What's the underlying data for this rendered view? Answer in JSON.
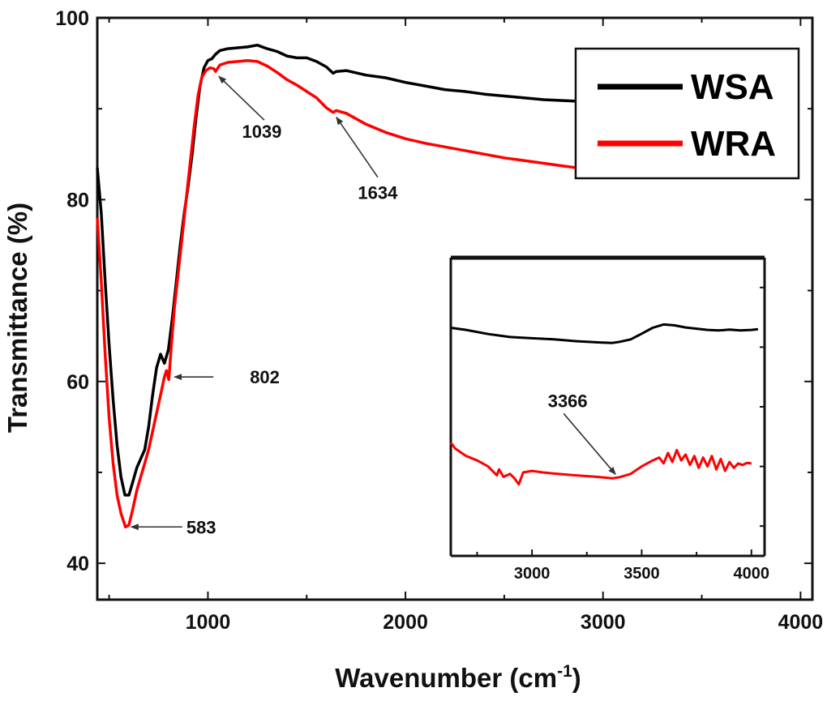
{
  "chart_data": [
    {
      "type": "line",
      "xlabel": "Wavenumber (cm",
      "xlabel_sup": "-1",
      "xlabel_end": ")",
      "ylabel": "Transmittance (%)",
      "xlim": [
        440,
        4060
      ],
      "ylim": [
        36,
        100
      ],
      "x_ticks": [
        1000,
        2000,
        3000,
        4000
      ],
      "y_ticks": [
        40,
        60,
        80,
        100
      ],
      "grid": false,
      "legend_position": "top-right",
      "series": [
        {
          "name": "WSA",
          "color": "#000000",
          "x": [
            440,
            460,
            480,
            500,
            520,
            540,
            560,
            580,
            600,
            620,
            640,
            660,
            680,
            700,
            720,
            740,
            760,
            780,
            800,
            820,
            840,
            860,
            880,
            900,
            920,
            940,
            960,
            980,
            1000,
            1020,
            1039,
            1060,
            1100,
            1150,
            1200,
            1250,
            1300,
            1350,
            1400,
            1450,
            1500,
            1550,
            1600,
            1634,
            1650,
            1700,
            1800,
            1900,
            2000,
            2100,
            2200,
            2300,
            2400,
            2500,
            2600,
            2700,
            2800,
            2900,
            3000,
            3100,
            3200
          ],
          "values": [
            83.5,
            78.5,
            71,
            64,
            58,
            53,
            49.5,
            47.5,
            47.5,
            49,
            50.5,
            51.5,
            52.5,
            55,
            58.5,
            61.5,
            63,
            62,
            63.5,
            67,
            71,
            75,
            78.5,
            81.5,
            85,
            89,
            92.5,
            94.5,
            95.3,
            95.5,
            96,
            96.4,
            96.6,
            96.7,
            96.8,
            97,
            96.6,
            96.3,
            95.8,
            95.6,
            95.6,
            95.2,
            94.6,
            93.9,
            94.1,
            94.2,
            93.7,
            93.4,
            92.9,
            92.5,
            92.1,
            91.9,
            91.6,
            91.4,
            91.2,
            91,
            90.9,
            90.8,
            90.7,
            90.6,
            90.6
          ]
        },
        {
          "name": "WRA",
          "color": "#ff0000",
          "x": [
            440,
            460,
            480,
            500,
            520,
            540,
            560,
            583,
            600,
            620,
            640,
            660,
            680,
            700,
            720,
            740,
            760,
            780,
            790,
            802,
            815,
            830,
            850,
            870,
            890,
            910,
            930,
            950,
            970,
            990,
            1010,
            1030,
            1039,
            1060,
            1100,
            1150,
            1200,
            1250,
            1300,
            1350,
            1400,
            1450,
            1500,
            1550,
            1600,
            1634,
            1650,
            1700,
            1800,
            1900,
            2000,
            2100,
            2200,
            2300,
            2400,
            2500,
            2600,
            2700,
            2800,
            2900,
            3000,
            3100,
            3200
          ],
          "values": [
            78,
            71,
            63,
            56,
            51,
            47.5,
            45.5,
            44,
            44.2,
            46,
            48,
            49.5,
            51,
            52.5,
            54.5,
            56.5,
            58.5,
            60.5,
            61.2,
            60.2,
            64,
            68,
            72,
            76,
            80,
            84,
            88,
            91.5,
            93.5,
            94.2,
            94.5,
            94.4,
            94.1,
            94.8,
            95.1,
            95.2,
            95.3,
            95.2,
            94.7,
            94,
            93.2,
            92.6,
            91.9,
            91.2,
            90.1,
            89.6,
            89.8,
            89.5,
            88.3,
            87.4,
            86.7,
            86.2,
            85.8,
            85.4,
            85,
            84.6,
            84.3,
            84,
            83.7,
            83.4,
            83.2,
            83,
            82.8
          ]
        }
      ],
      "annotations": [
        {
          "label": "583",
          "x": 583,
          "y": 44
        },
        {
          "label": "802",
          "x": 802,
          "y": 60.5
        },
        {
          "label": "1039",
          "x": 1039,
          "y": 94.1
        },
        {
          "label": "1634",
          "x": 1634,
          "y": 89.6
        }
      ]
    },
    {
      "type": "line",
      "inset": true,
      "xlim": [
        2630,
        4060
      ],
      "ylim": [
        0,
        100
      ],
      "x_ticks": [
        3000,
        3500,
        4000
      ],
      "y_axis_values_shown": false,
      "series": [
        {
          "name": "WSA",
          "color": "#000000",
          "x": [
            2630,
            2700,
            2800,
            2900,
            3000,
            3100,
            3200,
            3300,
            3366,
            3400,
            3450,
            3500,
            3550,
            3600,
            3650,
            3700,
            3750,
            3800,
            3850,
            3900,
            3950,
            4000,
            4030
          ],
          "values": [
            76.5,
            75.8,
            74.4,
            73.4,
            73,
            72.6,
            72,
            71.6,
            71.4,
            71.8,
            72.6,
            74.5,
            76.5,
            77.6,
            77.3,
            76.6,
            76.2,
            75.8,
            75.6,
            75.9,
            75.6,
            75.8,
            76
          ]
        },
        {
          "name": "WRA",
          "color": "#ff0000",
          "x": [
            2630,
            2650,
            2700,
            2750,
            2800,
            2820,
            2840,
            2850,
            2870,
            2900,
            2920,
            2940,
            2960,
            3000,
            3050,
            3100,
            3200,
            3300,
            3366,
            3400,
            3450,
            3500,
            3550,
            3580,
            3600,
            3620,
            3640,
            3660,
            3680,
            3700,
            3720,
            3740,
            3760,
            3780,
            3800,
            3820,
            3840,
            3860,
            3880,
            3900,
            3920,
            3940,
            3960,
            3980,
            4000
          ],
          "values": [
            38,
            36,
            33.5,
            32,
            30,
            28.5,
            27,
            29,
            26.5,
            27.5,
            26,
            24,
            28,
            28.5,
            28,
            27.6,
            27,
            26.5,
            26,
            26.4,
            27.5,
            30,
            32,
            33,
            31,
            34.5,
            31.5,
            35.5,
            32,
            34,
            30.5,
            33.5,
            29.5,
            33,
            30,
            33.5,
            29,
            32.5,
            28.5,
            31.5,
            29.5,
            31,
            30.5,
            31.2,
            31
          ]
        }
      ],
      "annotations": [
        {
          "label": "3366",
          "x": 3366,
          "y": 26
        }
      ]
    }
  ]
}
